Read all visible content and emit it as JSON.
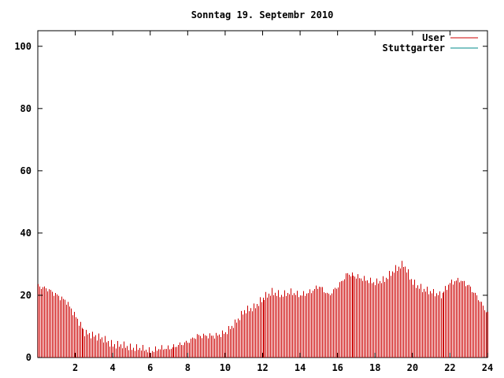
{
  "chart_data": {
    "type": "bar",
    "title": "Sonntag 19. Septembr 2010",
    "xlim": [
      0,
      24
    ],
    "ylim": [
      0,
      105
    ],
    "x_ticks": [
      2,
      4,
      6,
      8,
      10,
      12,
      14,
      16,
      18,
      20,
      22,
      24
    ],
    "y_ticks": [
      0,
      20,
      40,
      60,
      80,
      100
    ],
    "legend_position": "top-right",
    "grid": false,
    "series": [
      {
        "name": "User",
        "color": "#cc0000",
        "x": [
          0.0,
          0.5,
          1.0,
          1.5,
          2.0,
          2.5,
          3.0,
          3.5,
          4.0,
          4.5,
          5.0,
          5.5,
          6.0,
          6.5,
          7.0,
          7.5,
          8.0,
          8.5,
          9.0,
          9.5,
          10.0,
          10.5,
          11.0,
          11.5,
          12.0,
          12.5,
          13.0,
          13.5,
          14.0,
          14.5,
          15.0,
          15.5,
          16.0,
          16.5,
          17.0,
          17.5,
          18.0,
          18.5,
          19.0,
          19.5,
          20.0,
          20.5,
          21.0,
          21.5,
          22.0,
          22.5,
          23.0,
          23.5,
          24.0
        ],
        "values": [
          23,
          22,
          20,
          18,
          13,
          8,
          7,
          6,
          4,
          4,
          3,
          3,
          2,
          3,
          3,
          4,
          5,
          7,
          7,
          7,
          8,
          11,
          15,
          16,
          19,
          21,
          20,
          21,
          20,
          21,
          23,
          20,
          23,
          27,
          26,
          25,
          24,
          25,
          28,
          30,
          24,
          22,
          21,
          20,
          24,
          25,
          23,
          19,
          14
        ]
      },
      {
        "name": "Stuttgarter",
        "color": "#008b8b",
        "x": [],
        "values": []
      }
    ]
  }
}
